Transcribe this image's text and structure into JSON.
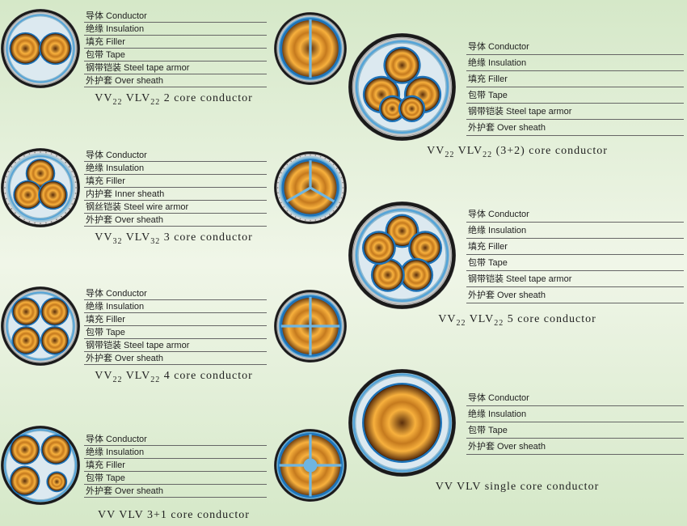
{
  "layer_labels": {
    "conductor": "导体  Conductor",
    "insulation": "绝缘  Insulation",
    "filler": "填充  Filler",
    "tape": "包带  Tape",
    "inner_sheath": "内护套  Inner sheath",
    "steel_tape_armor": "钢带铠装  Steel tape armor",
    "steel_wire_armor": "钢丝铠装  Steel wire armor",
    "over_sheath": "外护套  Over sheath"
  },
  "blocks_left": [
    {
      "caption_code": "VV22 VLV22",
      "caption_rest": "2 core conductor",
      "labels": [
        "conductor",
        "insulation",
        "filler",
        "tape",
        "steel_tape_armor",
        "over_sheath"
      ],
      "cores": 2,
      "armor": "tape"
    },
    {
      "caption_code": "VV32 VLV32",
      "caption_rest": "3 core conductor",
      "labels": [
        "conductor",
        "insulation",
        "filler",
        "inner_sheath",
        "steel_wire_armor",
        "over_sheath"
      ],
      "cores": 3,
      "armor": "wire"
    },
    {
      "caption_code": "VV22 VLV22",
      "caption_rest": "4 core conductor",
      "labels": [
        "conductor",
        "insulation",
        "filler",
        "tape",
        "steel_tape_armor",
        "over_sheath"
      ],
      "cores": 4,
      "armor": "tape"
    },
    {
      "caption_code": "VV VLV",
      "caption_rest": "3+1 core conductor",
      "labels": [
        "conductor",
        "insulation",
        "filler",
        "tape",
        "over_sheath"
      ],
      "cores": "3+1",
      "armor": "none"
    }
  ],
  "blocks_right": [
    {
      "caption_code": "VV22 VLV22",
      "caption_rest": "(3+2) core conductor",
      "labels": [
        "conductor",
        "insulation",
        "filler",
        "tape",
        "steel_tape_armor",
        "over_sheath"
      ],
      "cores": "3+2",
      "armor": "tape"
    },
    {
      "caption_code": "VV22 VLV22",
      "caption_rest": "5 core conductor",
      "labels": [
        "conductor",
        "insulation",
        "filler",
        "tape",
        "steel_tape_armor",
        "over_sheath"
      ],
      "cores": 5,
      "armor": "tape"
    },
    {
      "caption_code": "VV VLV",
      "caption_rest": "single core conductor",
      "labels": [
        "conductor",
        "insulation",
        "tape",
        "over_sheath"
      ],
      "cores": 1,
      "armor": "none"
    }
  ],
  "colors": {
    "sheath": "#1a1a1a",
    "armor_tape": "#c8c8c8",
    "armor_wire_dot": "#888888",
    "filler": "#8fb9cf",
    "inner_sheath": "#9ec5d8",
    "tape_inner": "#54a4d8",
    "insulation_ring": "#1e73b8",
    "core_outer": "#c57a1e",
    "core_mid": "#f7b03d",
    "core_inner": "#5a2e0b",
    "separator": "#6fb5e0"
  }
}
